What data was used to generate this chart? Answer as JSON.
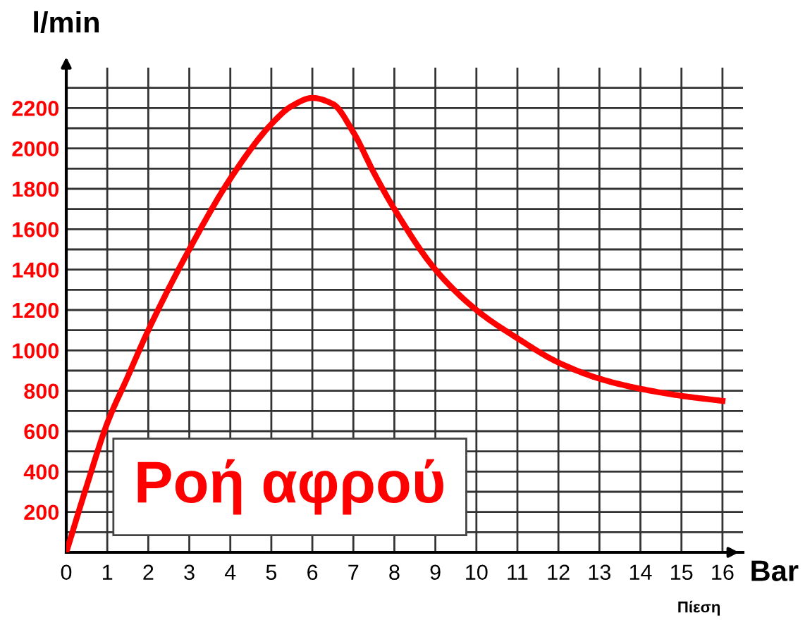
{
  "chart_data": {
    "type": "line",
    "xlabel": "Bar",
    "ylabel": "l/min",
    "annotations": [
      "Ροή αφρού",
      "Πίεση"
    ],
    "x": [
      0,
      0.5,
      1,
      1.5,
      2,
      3,
      4,
      5,
      5.5,
      6,
      6.5,
      7,
      7.5,
      8,
      9,
      10,
      11,
      12,
      13,
      14,
      15,
      16
    ],
    "series": [
      {
        "color": "#ff0000",
        "values": [
          0,
          330,
          640,
          870,
          1100,
          1500,
          1850,
          2120,
          2210,
          2250,
          2220,
          2080,
          1880,
          1700,
          1400,
          1200,
          1060,
          940,
          860,
          810,
          775,
          750
        ]
      }
    ],
    "xlim": [
      0,
      16.5
    ],
    "ylim": [
      0,
      2400
    ],
    "xticks": [
      0,
      1,
      2,
      3,
      4,
      5,
      6,
      7,
      8,
      9,
      10,
      11,
      12,
      13,
      14,
      15,
      16
    ],
    "yticks": [
      {
        "value": 100,
        "label": null
      },
      200,
      {
        "value": 300,
        "label": null
      },
      400,
      {
        "value": 500,
        "label": null
      },
      600,
      {
        "value": 700,
        "label": null
      },
      800,
      {
        "value": 900,
        "label": null
      },
      1000,
      {
        "value": 1100,
        "label": null
      },
      1200,
      {
        "value": 1300,
        "label": null
      },
      1400,
      {
        "value": 1500,
        "label": null
      },
      1600,
      {
        "value": 1700,
        "label": null
      },
      1800,
      {
        "value": 1900,
        "label": null
      },
      2000,
      {
        "value": 2100,
        "label": null
      },
      2200,
      {
        "value": 2300,
        "label": null
      }
    ],
    "grid": true,
    "legend": false,
    "marker": "none",
    "line_style": "solid"
  }
}
